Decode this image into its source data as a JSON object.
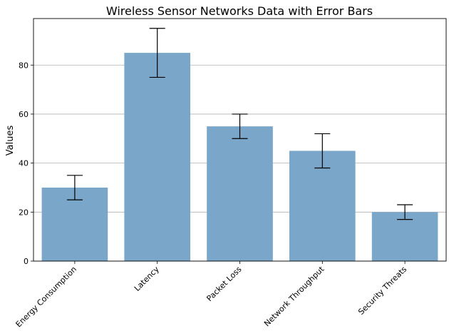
{
  "chart_data": {
    "type": "bar",
    "title": "Wireless Sensor Networks Data with Error Bars",
    "xlabel": "",
    "ylabel": "Values",
    "categories": [
      "Energy Consumption",
      "Latency",
      "Packet Loss",
      "Network Throughput",
      "Security Threats"
    ],
    "values": [
      30,
      85,
      55,
      45,
      20
    ],
    "error_low": [
      25,
      75,
      50,
      38,
      17
    ],
    "error_high": [
      35,
      95,
      60,
      52,
      23
    ],
    "ylim": [
      0,
      99
    ],
    "yticks": [
      0,
      20,
      40,
      60,
      80
    ],
    "grid": "horizontal",
    "bar_color": "#7aa6c9",
    "tick_label_rotation": 45
  }
}
